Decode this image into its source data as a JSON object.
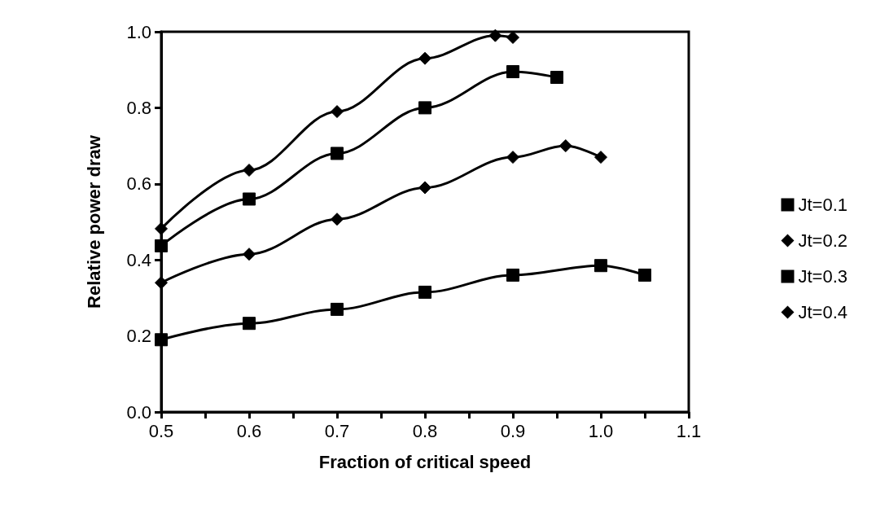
{
  "chart_data": {
    "type": "line",
    "xlabel": "Fraction of critical speed",
    "ylabel": "Relative power draw",
    "xlim": [
      0.5,
      1.1
    ],
    "xticks": [
      0.5,
      {
        "value": 0.55,
        "label": null
      },
      0.6,
      {
        "value": 0.65,
        "label": null
      },
      0.7,
      {
        "value": 0.75,
        "label": null
      },
      0.8,
      {
        "value": 0.85,
        "label": null
      },
      0.9,
      {
        "value": 0.95,
        "label": null
      },
      {
        "value": 1.0,
        "label": "1.0"
      },
      {
        "value": 1.05,
        "label": null
      },
      1.1
    ],
    "ylim": [
      0,
      1
    ],
    "yticks": [
      {
        "value": 0,
        "label": "0.0"
      },
      0.2,
      0.4,
      0.6,
      0.8,
      {
        "value": 1,
        "label": "1.0"
      }
    ],
    "grid": false,
    "legend": "right",
    "line_style": "solid",
    "series": [
      {
        "name": "Jt=0.1",
        "color": "#000000",
        "marker": "square",
        "x": [
          0.5,
          0.6,
          0.7,
          0.8,
          0.9,
          1.0,
          1.05
        ],
        "values": [
          0.19,
          0.233,
          0.27,
          0.315,
          0.36,
          0.385,
          0.36
        ]
      },
      {
        "name": "Jt=0.2",
        "color": "#000000",
        "marker": "diamond",
        "x": [
          0.5,
          0.6,
          0.7,
          0.8,
          0.9,
          0.96,
          1.0
        ],
        "values": [
          0.34,
          0.415,
          0.507,
          0.59,
          0.67,
          0.7,
          0.67
        ]
      },
      {
        "name": "Jt=0.3",
        "color": "#000000",
        "marker": "square",
        "x": [
          0.5,
          0.6,
          0.7,
          0.8,
          0.9,
          0.95
        ],
        "values": [
          0.437,
          0.56,
          0.68,
          0.8,
          0.895,
          0.88
        ]
      },
      {
        "name": "Jt=0.4",
        "color": "#000000",
        "marker": "diamond",
        "x": [
          0.5,
          0.6,
          0.7,
          0.8,
          0.88,
          0.9
        ],
        "values": [
          0.482,
          0.636,
          0.79,
          0.93,
          0.99,
          0.985
        ]
      }
    ]
  }
}
